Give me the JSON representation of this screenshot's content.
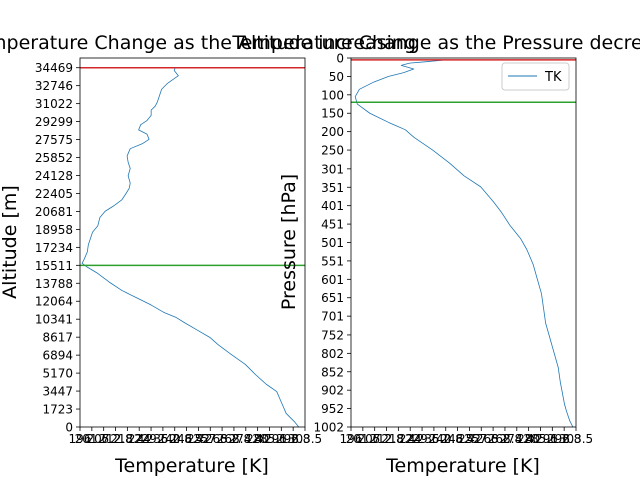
{
  "figure": {
    "left_title": "Temperature Change as the Altitude increasing",
    "right_title": "Temperature Change as the Pressure decreasing"
  },
  "chart_data": [
    {
      "type": "line",
      "title": "Temperature Change as the Altitude increasing",
      "xlabel": "Temperature [K]",
      "ylabel": "Altitude [m]",
      "xlim": [
        196,
        303.5
      ],
      "ylim": [
        0,
        35400
      ],
      "x_tick_labels": [
        "196",
        "201.6",
        "207.2",
        "212.8",
        "218.4",
        "224",
        "229.6",
        "235.2",
        "240.8",
        "246.4",
        "252",
        "257.6",
        "263.2",
        "268.8",
        "274.4",
        "280",
        "285.6",
        "291.2",
        "296.8",
        "303.5"
      ],
      "y_ticks": [
        0,
        1723,
        3447,
        5170,
        6894,
        8617,
        10341,
        12064,
        13788,
        15511,
        17234,
        18958,
        20681,
        22405,
        24128,
        25852,
        27575,
        29299,
        31022,
        32746,
        34469
      ],
      "grid": false,
      "reference_lines": [
        {
          "orientation": "horizontal",
          "value": 34469,
          "color": "#d62728"
        },
        {
          "orientation": "horizontal",
          "value": 15511,
          "color": "#2ca02c"
        }
      ],
      "series": [
        {
          "color": "#1f77b4",
          "points": [
            [
              300.5,
              0
            ],
            [
              298.5,
              500
            ],
            [
              294.5,
              1300
            ],
            [
              293,
              2000
            ],
            [
              291.5,
              2700
            ],
            [
              290,
              3400
            ],
            [
              285,
              4100
            ],
            [
              280,
              5000
            ],
            [
              275,
              6000
            ],
            [
              268,
              7000
            ],
            [
              262,
              7900
            ],
            [
              258,
              8600
            ],
            [
              252,
              9300
            ],
            [
              246,
              10000
            ],
            [
              242,
              10500
            ],
            [
              236,
              11000
            ],
            [
              230,
              11700
            ],
            [
              224,
              12300
            ],
            [
              216,
              13100
            ],
            [
              210,
              13900
            ],
            [
              204,
              14800
            ],
            [
              199,
              15400
            ],
            [
              197,
              15700
            ],
            [
              198,
              16100
            ],
            [
              199.5,
              16800
            ],
            [
              200,
              17500
            ],
            [
              201,
              18100
            ],
            [
              202,
              18700
            ],
            [
              204.5,
              19300
            ],
            [
              205.5,
              20100
            ],
            [
              208,
              20700
            ],
            [
              212,
              21200
            ],
            [
              216,
              21800
            ],
            [
              218,
              22400
            ],
            [
              219.5,
              22900
            ],
            [
              220,
              23400
            ],
            [
              219,
              24100
            ],
            [
              220,
              24800
            ],
            [
              219,
              25400
            ],
            [
              218.5,
              26000
            ],
            [
              220,
              26700
            ],
            [
              226,
              27200
            ],
            [
              229,
              27600
            ],
            [
              228,
              28100
            ],
            [
              224,
              28500
            ],
            [
              225,
              29000
            ],
            [
              228,
              29400
            ],
            [
              230,
              29900
            ],
            [
              230,
              30400
            ],
            [
              232,
              30800
            ],
            [
              233,
              31200
            ],
            [
              234,
              31800
            ],
            [
              235,
              32400
            ],
            [
              238,
              33000
            ],
            [
              243,
              33700
            ],
            [
              241,
              34200
            ],
            [
              241.5,
              34469
            ]
          ]
        }
      ]
    },
    {
      "type": "line",
      "title": "Temperature Change as the Pressure decreasing",
      "xlabel": "Temperature [K]",
      "ylabel": "Pressure [hPa]",
      "xlim": [
        196,
        303.5
      ],
      "ylim": [
        1002,
        0
      ],
      "x_tick_labels": [
        "196",
        "201.6",
        "207.2",
        "212.8",
        "218.4",
        "224",
        "229.6",
        "235.2",
        "240.8",
        "246.4",
        "252",
        "257.6",
        "263.2",
        "268.8",
        "274.4",
        "280",
        "285.6",
        "291.2",
        "296.8",
        "303.5"
      ],
      "y_ticks": [
        0,
        50,
        100,
        150,
        200,
        250,
        301,
        351,
        401,
        451,
        501,
        551,
        601,
        651,
        701,
        752,
        802,
        852,
        902,
        952,
        1002
      ],
      "grid": false,
      "legend": {
        "entries": [
          "TK"
        ],
        "position": "upper right"
      },
      "reference_lines": [
        {
          "orientation": "horizontal",
          "value": 5,
          "color": "#d62728"
        },
        {
          "orientation": "horizontal",
          "value": 120,
          "color": "#2ca02c"
        }
      ],
      "series": [
        {
          "name": "TK",
          "color": "#1f77b4",
          "points": [
            [
              241.5,
              5
            ],
            [
              232,
              10
            ],
            [
              224,
              14
            ],
            [
              220,
              20
            ],
            [
              226,
              30
            ],
            [
              221,
              40
            ],
            [
              214,
              50
            ],
            [
              207,
              65
            ],
            [
              200,
              85
            ],
            [
              198,
              105
            ],
            [
              199,
              125
            ],
            [
              205,
              150
            ],
            [
              214,
              175
            ],
            [
              222,
              195
            ],
            [
              226,
              215
            ],
            [
              235,
              250
            ],
            [
              243,
              285
            ],
            [
              250,
              320
            ],
            [
              258,
              350
            ],
            [
              264,
              390
            ],
            [
              268,
              420
            ],
            [
              272,
              455
            ],
            [
              277,
              490
            ],
            [
              280,
              520
            ],
            [
              283,
              560
            ],
            [
              285,
              600
            ],
            [
              287,
              640
            ],
            [
              288,
              680
            ],
            [
              289,
              720
            ],
            [
              291,
              760
            ],
            [
              293,
              800
            ],
            [
              295,
              840
            ],
            [
              296,
              880
            ],
            [
              297,
              910
            ],
            [
              298,
              940
            ],
            [
              299,
              960
            ],
            [
              300.5,
              985
            ],
            [
              302,
              1002
            ]
          ]
        }
      ]
    }
  ]
}
